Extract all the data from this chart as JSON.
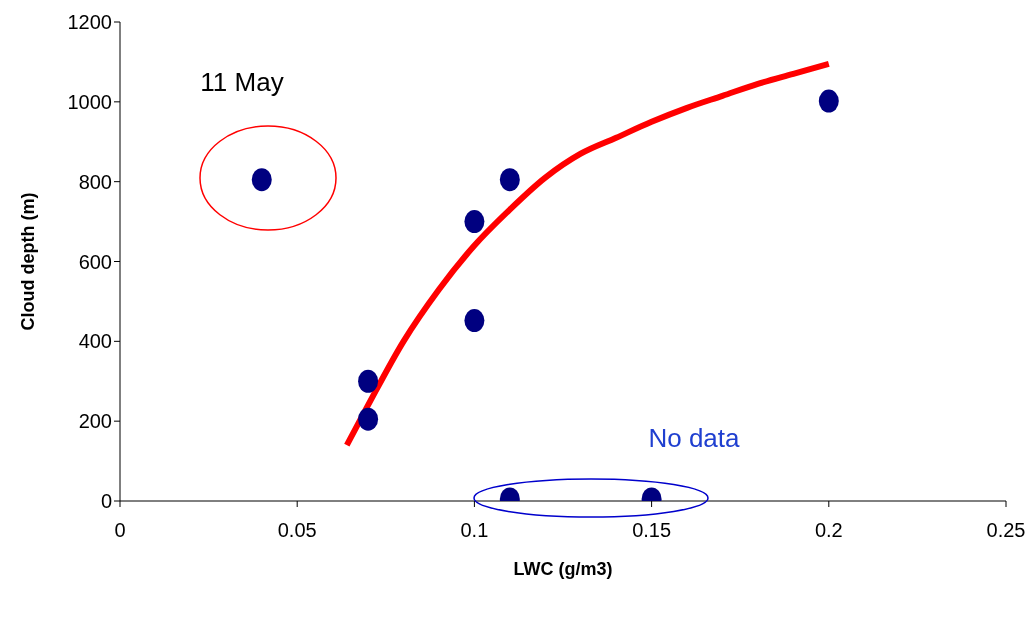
{
  "chart_data": {
    "type": "scatter",
    "xlabel": "LWC (g/m3)",
    "ylabel": "Cloud depth (m)",
    "xlim": [
      0,
      0.25
    ],
    "xticks": [
      0,
      0.05,
      0.1,
      0.15,
      0.2,
      0.25
    ],
    "ylim": [
      0,
      1200
    ],
    "yticks": [
      0,
      200,
      400,
      600,
      800,
      1000,
      1200
    ],
    "grid": false,
    "legend": false,
    "series": [
      {
        "marker": "circle",
        "color": "#000080",
        "x": [
          0.04,
          0.07,
          0.07,
          0.1,
          0.1,
          0.11,
          0.11,
          0.15,
          0.2
        ],
        "values": [
          805,
          300,
          205,
          700,
          452,
          805,
          5,
          5,
          1002
        ]
      },
      {
        "type": "line",
        "color": "#ff0000",
        "x": [
          0.064,
          0.07,
          0.08,
          0.09,
          0.1,
          0.11,
          0.12,
          0.13,
          0.14,
          0.15,
          0.16,
          0.17,
          0.18,
          0.19,
          0.2
        ],
        "values": [
          140,
          240,
          400,
          530,
          640,
          730,
          810,
          870,
          910,
          950,
          985,
          1015,
          1045,
          1070,
          1095
        ]
      }
    ],
    "annotations": [
      "11 May",
      "No data"
    ]
  }
}
